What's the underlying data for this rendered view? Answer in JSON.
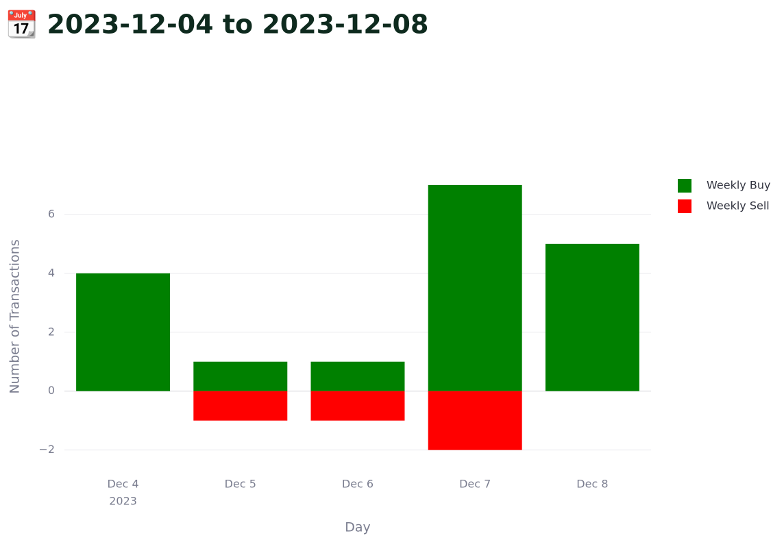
{
  "chart_data": {
    "type": "bar",
    "barmode": "relative",
    "title": "📆 2023-12-04 to 2023-12-08",
    "x_label": "Day",
    "y_label": "Number of Transactions",
    "categories": [
      "Dec 4",
      "Dec 5",
      "Dec 6",
      "Dec 7",
      "Dec 8"
    ],
    "category_year": "2023",
    "series": [
      {
        "name": "Weekly Buy",
        "color": "#008000",
        "values": [
          4,
          1,
          1,
          7,
          5
        ]
      },
      {
        "name": "Weekly Sell",
        "color": "#ff0000",
        "values": [
          0,
          -1,
          -1,
          -2,
          0
        ]
      }
    ],
    "ylim": [
      -2.45,
      7.37
    ],
    "yticks": [
      {
        "value": -2,
        "label": "−2"
      },
      0,
      2,
      4,
      6
    ],
    "grid": true,
    "legend": "top-right"
  }
}
